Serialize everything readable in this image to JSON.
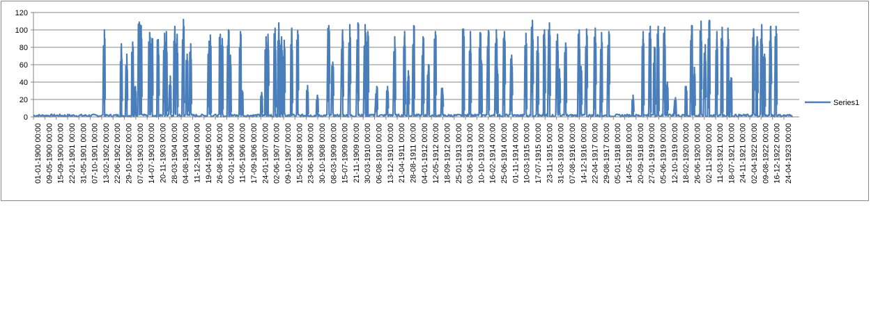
{
  "chart_data": {
    "type": "line",
    "title": "",
    "xlabel": "",
    "ylabel": "",
    "ylim": [
      0,
      120
    ],
    "yticks": [
      0,
      20,
      40,
      60,
      80,
      100,
      120
    ],
    "grid": true,
    "legend": "right",
    "x_start": "01-01-1900 00:00",
    "x_end": "24-04-1923 00:00",
    "x_tick_labels": [
      "01-01-1900 00:00",
      "09-05-1900 00:00",
      "15-09-1900 00:00",
      "22-01-1901 00:00",
      "31-05-1901 00:00",
      "07-10-1901 00:00",
      "13-02-1902 00:00",
      "22-06-1902 00:00",
      "29-10-1902 00:00",
      "07-03-1903 00:00",
      "14-07-1903 00:00",
      "20-11-1903 00:00",
      "28-03-1904 00:00",
      "04-08-1904 00:00",
      "11-12-1904 00:00",
      "19-04-1905 00:00",
      "26-08-1905 00:00",
      "02-01-1906 00:00",
      "11-05-1906 00:00",
      "17-09-1906 00:00",
      "24-01-1907 00:00",
      "02-06-1907 00:00",
      "09-10-1907 00:00",
      "15-02-1908 00:00",
      "23-06-1908 00:00",
      "30-10-1908 00:00",
      "08-03-1909 00:00",
      "15-07-1909 00:00",
      "21-11-1909 00:00",
      "30-03-1910 00:00",
      "06-08-1910 00:00",
      "13-12-1910 00:00",
      "21-04-1911 00:00",
      "28-08-1911 00:00",
      "04-01-1912 00:00",
      "12-05-1912 00:00",
      "18-09-1912 00:00",
      "25-01-1913 00:00",
      "03-06-1913 00:00",
      "10-10-1913 00:00",
      "16-02-1914 00:00",
      "25-06-1914 00:00",
      "01-11-1914 00:00",
      "10-03-1915 00:00",
      "17-07-1915 00:00",
      "23-11-1915 00:00",
      "31-03-1916 00:00",
      "07-08-1916 00:00",
      "14-12-1916 00:00",
      "22-04-1917 00:00",
      "29-08-1917 00:00",
      "05-01-1918 00:00",
      "14-05-1918 00:00",
      "20-09-1918 00:00",
      "27-01-1919 00:00",
      "05-06-1919 00:00",
      "12-10-1919 00:00",
      "18-02-1920 00:00",
      "26-06-1920 00:00",
      "02-11-1920 00:00",
      "11-03-1921 00:00",
      "18-07-1921 00:00",
      "24-11-1921 00:00",
      "02-04-1922 00:00",
      "09-08-1922 00:00",
      "16-12-1922 00:00",
      "24-04-1923 00:00"
    ],
    "series": [
      {
        "name": "Series1",
        "color": "#4a7ebb",
        "peaks": [
          [
            "12-03-1902",
            100
          ],
          [
            "20-09-1902",
            84
          ],
          [
            "20-11-1902",
            72
          ],
          [
            "25-01-1903",
            86
          ],
          [
            "25-02-1903",
            35
          ],
          [
            "10-04-1903",
            109
          ],
          [
            "01-05-1903",
            105
          ],
          [
            "05-08-1903",
            97
          ],
          [
            "01-09-1903",
            90
          ],
          [
            "10-11-1903",
            89
          ],
          [
            "20-01-1904",
            96
          ],
          [
            "10-02-1904",
            98
          ],
          [
            "25-03-1904",
            47
          ],
          [
            "15-05-1904",
            104
          ],
          [
            "10-06-1904",
            95
          ],
          [
            "20-08-1904",
            112
          ],
          [
            "01-10-1904",
            72
          ],
          [
            "10-11-1904",
            84
          ],
          [
            "05-06-1905",
            87
          ],
          [
            "20-06-1905",
            94
          ],
          [
            "10-10-1905",
            95
          ],
          [
            "01-11-1905",
            90
          ],
          [
            "10-01-1906",
            100
          ],
          [
            "01-02-1906",
            71
          ],
          [
            "25-05-1906",
            98
          ],
          [
            "15-06-1906",
            30
          ],
          [
            "20-01-1907",
            28
          ],
          [
            "10-03-1907",
            92
          ],
          [
            "01-04-1907",
            95
          ],
          [
            "20-06-1907",
            102
          ],
          [
            "01-08-1907",
            108
          ],
          [
            "01-09-1907",
            92
          ],
          [
            "01-10-1907",
            88
          ],
          [
            "25-12-1907",
            102
          ],
          [
            "01-03-1908",
            99
          ],
          [
            "20-06-1908",
            36
          ],
          [
            "10-10-1908",
            25
          ],
          [
            "15-02-1909",
            105
          ],
          [
            "01-04-1909",
            63
          ],
          [
            "20-07-1909",
            100
          ],
          [
            "10-10-1909",
            106
          ],
          [
            "10-01-1910",
            108
          ],
          [
            "01-04-1910",
            106
          ],
          [
            "01-05-1910",
            98
          ],
          [
            "10-08-1910",
            35
          ],
          [
            "10-12-1910",
            35
          ],
          [
            "01-03-1911",
            92
          ],
          [
            "20-06-1911",
            98
          ],
          [
            "01-08-1911",
            53
          ],
          [
            "01-10-1911",
            105
          ],
          [
            "15-01-1912",
            92
          ],
          [
            "15-03-1912",
            60
          ],
          [
            "01-06-1912",
            98
          ],
          [
            "20-08-1912",
            33
          ],
          [
            "15-04-1913",
            101
          ],
          [
            "01-07-1913",
            98
          ],
          [
            "20-10-1913",
            97
          ],
          [
            "01-11-1913",
            65
          ],
          [
            "20-01-1914",
            99
          ],
          [
            "20-04-1914",
            100
          ],
          [
            "01-05-1914",
            55
          ],
          [
            "20-07-1914",
            98
          ],
          [
            "10-10-1914",
            71
          ],
          [
            "20-03-1915",
            96
          ],
          [
            "01-06-1915",
            111
          ],
          [
            "01-08-1915",
            92
          ],
          [
            "15-10-1915",
            100
          ],
          [
            "10-12-1915",
            108
          ],
          [
            "10-03-1916",
            95
          ],
          [
            "01-04-1916",
            55
          ],
          [
            "10-06-1916",
            85
          ],
          [
            "10-11-1916",
            100
          ],
          [
            "01-12-1916",
            58
          ],
          [
            "01-02-1917",
            101
          ],
          [
            "10-05-1917",
            102
          ],
          [
            "20-07-1917",
            97
          ],
          [
            "10-10-1917",
            98
          ],
          [
            "10-07-1918",
            25
          ],
          [
            "01-11-1918",
            98
          ],
          [
            "20-01-1919",
            104
          ],
          [
            "10-03-1919",
            80
          ],
          [
            "20-04-1919",
            104
          ],
          [
            "01-07-1919",
            103
          ],
          [
            "01-08-1919",
            40
          ],
          [
            "01-11-1919",
            22
          ],
          [
            "01-03-1920",
            35
          ],
          [
            "01-05-1920",
            105
          ],
          [
            "01-06-1920",
            57
          ],
          [
            "15-08-1920",
            110
          ],
          [
            "01-10-1920",
            83
          ],
          [
            "15-11-1920",
            111
          ],
          [
            "10-02-1921",
            98
          ],
          [
            "10-04-1921",
            103
          ],
          [
            "15-06-1921",
            102
          ],
          [
            "20-07-1921",
            45
          ],
          [
            "01-04-1922",
            101
          ],
          [
            "10-05-1922",
            92
          ],
          [
            "01-07-1922",
            106
          ],
          [
            "01-08-1922",
            72
          ],
          [
            "10-10-1922",
            104
          ],
          [
            "10-12-1922",
            104
          ]
        ]
      }
    ]
  }
}
